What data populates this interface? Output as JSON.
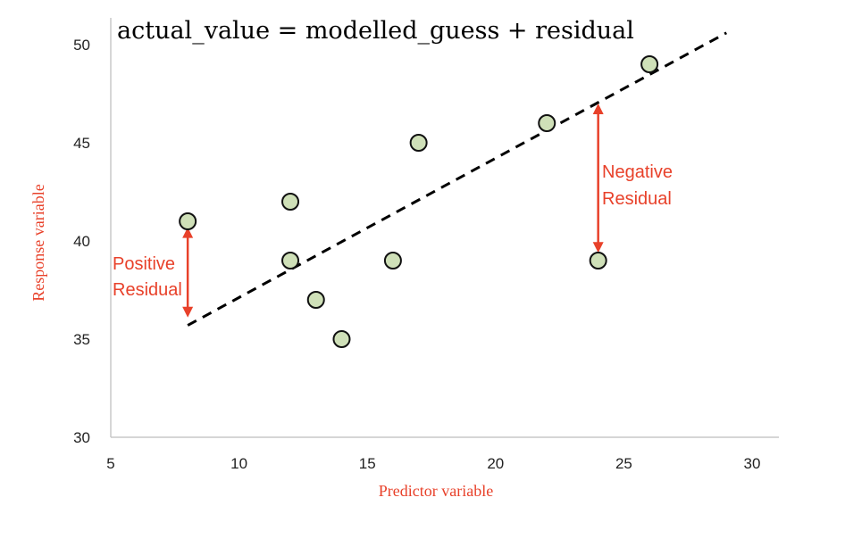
{
  "chart_data": {
    "type": "scatter",
    "title": "actual_value = modelled_guess + residual",
    "xlabel": "Predictor variable",
    "ylabel": "Response variable",
    "xlim": [
      5,
      30
    ],
    "ylim": [
      30,
      50
    ],
    "xticks": [
      "5",
      "10",
      "15",
      "20",
      "25",
      "30"
    ],
    "yticks": [
      "30",
      "35",
      "40",
      "45",
      "50"
    ],
    "grid": false,
    "points": [
      {
        "x": 8,
        "y": 41
      },
      {
        "x": 12,
        "y": 42
      },
      {
        "x": 12,
        "y": 39
      },
      {
        "x": 13,
        "y": 37
      },
      {
        "x": 14,
        "y": 35
      },
      {
        "x": 16,
        "y": 39
      },
      {
        "x": 17,
        "y": 45
      },
      {
        "x": 22,
        "y": 46
      },
      {
        "x": 24,
        "y": 39
      },
      {
        "x": 26,
        "y": 49
      }
    ],
    "trend_line": {
      "x": [
        8,
        29
      ],
      "y": [
        35.7,
        50.6
      ],
      "style": "dashed"
    },
    "annotations": [
      {
        "lines": [
          "Positive",
          "Residual"
        ],
        "x": 8,
        "y_from": 40.7,
        "y_to": 36.1
      },
      {
        "lines": [
          "Negative",
          "Residual"
        ],
        "x": 24,
        "y_from": 47,
        "y_to": 39.4
      }
    ],
    "colors": {
      "point_fill": "#cfe0b8",
      "point_stroke": "#111111",
      "annotation": "#e8412a",
      "axis": "#c8c8c8",
      "trend": "#000000"
    }
  }
}
